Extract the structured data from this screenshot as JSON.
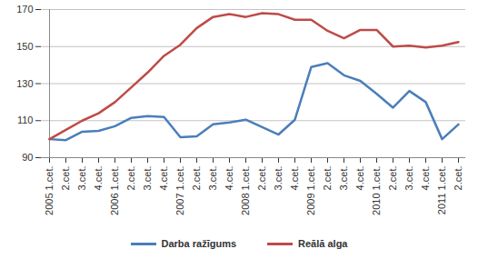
{
  "chart_data": {
    "type": "line",
    "categories": [
      "2005 1.cet.",
      "2.cet.",
      "3.cet.",
      "4.cet.",
      "2006 1.cet.",
      "2.cet.",
      "3.cet.",
      "4.cet.",
      "2007 1.cet.",
      "2.cet.",
      "3.cet.",
      "4.cet.",
      "2008 1.cet.",
      "2.cet.",
      "3.cet.",
      "4.cet.",
      "2009 1.cet.",
      "2.cet.",
      "3.cet.",
      "4.cet.",
      "2010 1.cet.",
      "2.cet.",
      "3.cet.",
      "4.cet.",
      "2011 1.cet.",
      "2.cet."
    ],
    "series": [
      {
        "name": "Darba ražīgums",
        "color": "#4a7ebb",
        "values": [
          100,
          99.5,
          104,
          104.5,
          107,
          111.5,
          112.5,
          112,
          101,
          101.5,
          108,
          109,
          110.5,
          106.5,
          102.5,
          110.5,
          139,
          141,
          134.5,
          131.5,
          124.5,
          117,
          126,
          120,
          100,
          108
        ]
      },
      {
        "name": "Reālā alga",
        "color": "#be4b48",
        "values": [
          100,
          105,
          110,
          114,
          120,
          128,
          136,
          145,
          151,
          160,
          166,
          167.5,
          166,
          168,
          167.5,
          164.5,
          164.5,
          158.5,
          154.5,
          159,
          159,
          150,
          150.5,
          149.5,
          150.5,
          152.5
        ]
      }
    ],
    "ylim": [
      90,
      170
    ],
    "yticks": [
      90,
      110,
      130,
      150,
      170
    ],
    "grid": true,
    "legend": "bottom"
  }
}
